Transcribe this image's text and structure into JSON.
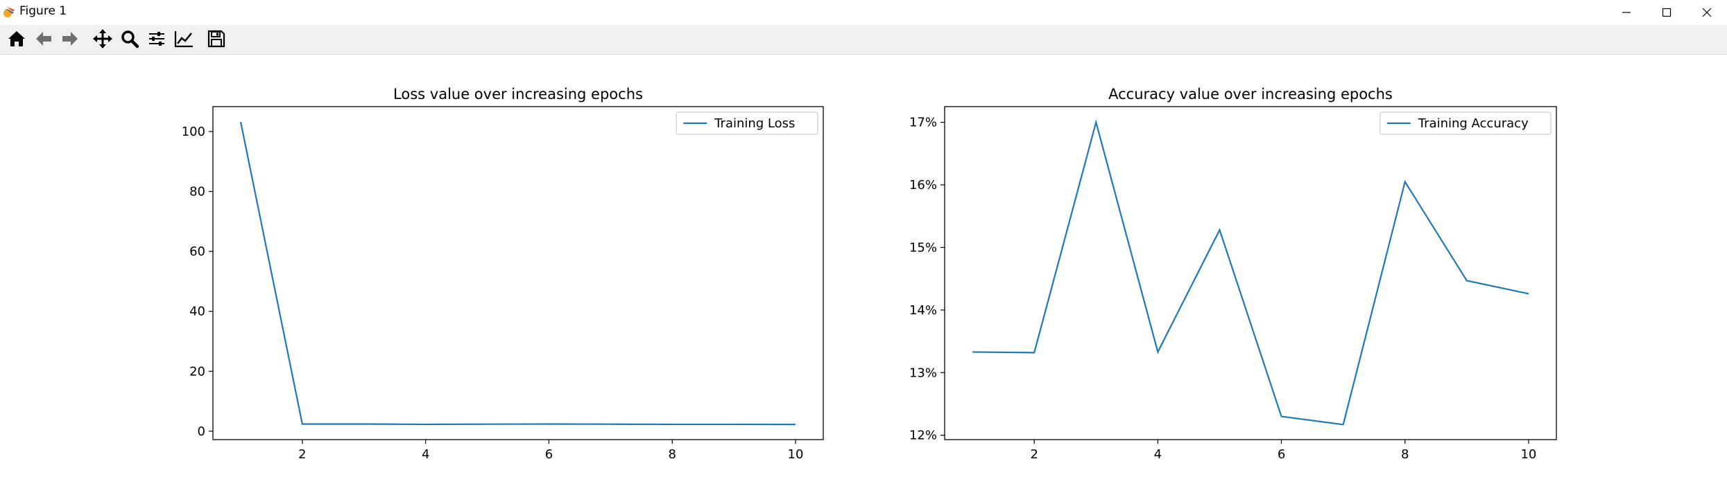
{
  "window": {
    "title": "Figure 1",
    "icon": "matplotlib-icon",
    "controls": [
      "minimize-icon",
      "maximize-icon",
      "close-icon"
    ]
  },
  "toolbar": {
    "buttons": [
      {
        "name": "home",
        "icon": "home-icon"
      },
      {
        "name": "back",
        "icon": "arrow-left-icon"
      },
      {
        "name": "forward",
        "icon": "arrow-right-icon"
      },
      {
        "name": "pan",
        "icon": "move-arrows-icon"
      },
      {
        "name": "zoom",
        "icon": "magnifier-icon"
      },
      {
        "name": "subplots",
        "icon": "sliders-icon"
      },
      {
        "name": "customize",
        "icon": "line-chart-icon"
      },
      {
        "name": "save",
        "icon": "floppy-disk-icon"
      }
    ]
  },
  "chart_data": [
    {
      "type": "line",
      "title": "Loss value over increasing epochs",
      "xlabel": "",
      "ylabel": "",
      "x": [
        1,
        2,
        3,
        4,
        5,
        6,
        7,
        8,
        9,
        10
      ],
      "series": [
        {
          "name": "Training Loss",
          "color": "#1f77b4",
          "values": [
            103.2,
            2.4,
            2.4,
            2.3,
            2.35,
            2.4,
            2.35,
            2.3,
            2.3,
            2.25
          ]
        }
      ],
      "xlim": [
        0.55,
        10.45
      ],
      "ylim": [
        -2.8,
        108.3
      ],
      "xticks": [
        2,
        4,
        6,
        8,
        10
      ],
      "xtick_labels": [
        "2",
        "4",
        "6",
        "8",
        "10"
      ],
      "yticks": [
        0,
        20,
        40,
        60,
        80,
        100
      ],
      "ytick_labels": [
        "0",
        "20",
        "40",
        "60",
        "80",
        "100"
      ],
      "legend_position": "upper-right",
      "grid": false
    },
    {
      "type": "line",
      "title": "Accuracy value over increasing epochs",
      "xlabel": "",
      "ylabel": "",
      "x": [
        1,
        2,
        3,
        4,
        5,
        6,
        7,
        8,
        9,
        10
      ],
      "series": [
        {
          "name": "Training Accuracy",
          "color": "#1f77b4",
          "values": [
            13.33,
            13.32,
            17.0,
            13.33,
            15.28,
            12.3,
            12.17,
            16.05,
            14.47,
            14.26
          ]
        }
      ],
      "xlim": [
        0.55,
        10.45
      ],
      "ylim": [
        11.93,
        17.25
      ],
      "xticks": [
        2,
        4,
        6,
        8,
        10
      ],
      "xtick_labels": [
        "2",
        "4",
        "6",
        "8",
        "10"
      ],
      "yticks": [
        12,
        13,
        14,
        15,
        16,
        17
      ],
      "ytick_labels": [
        "12%",
        "13%",
        "14%",
        "15%",
        "16%",
        "17%"
      ],
      "legend_position": "upper-right",
      "grid": false
    }
  ]
}
